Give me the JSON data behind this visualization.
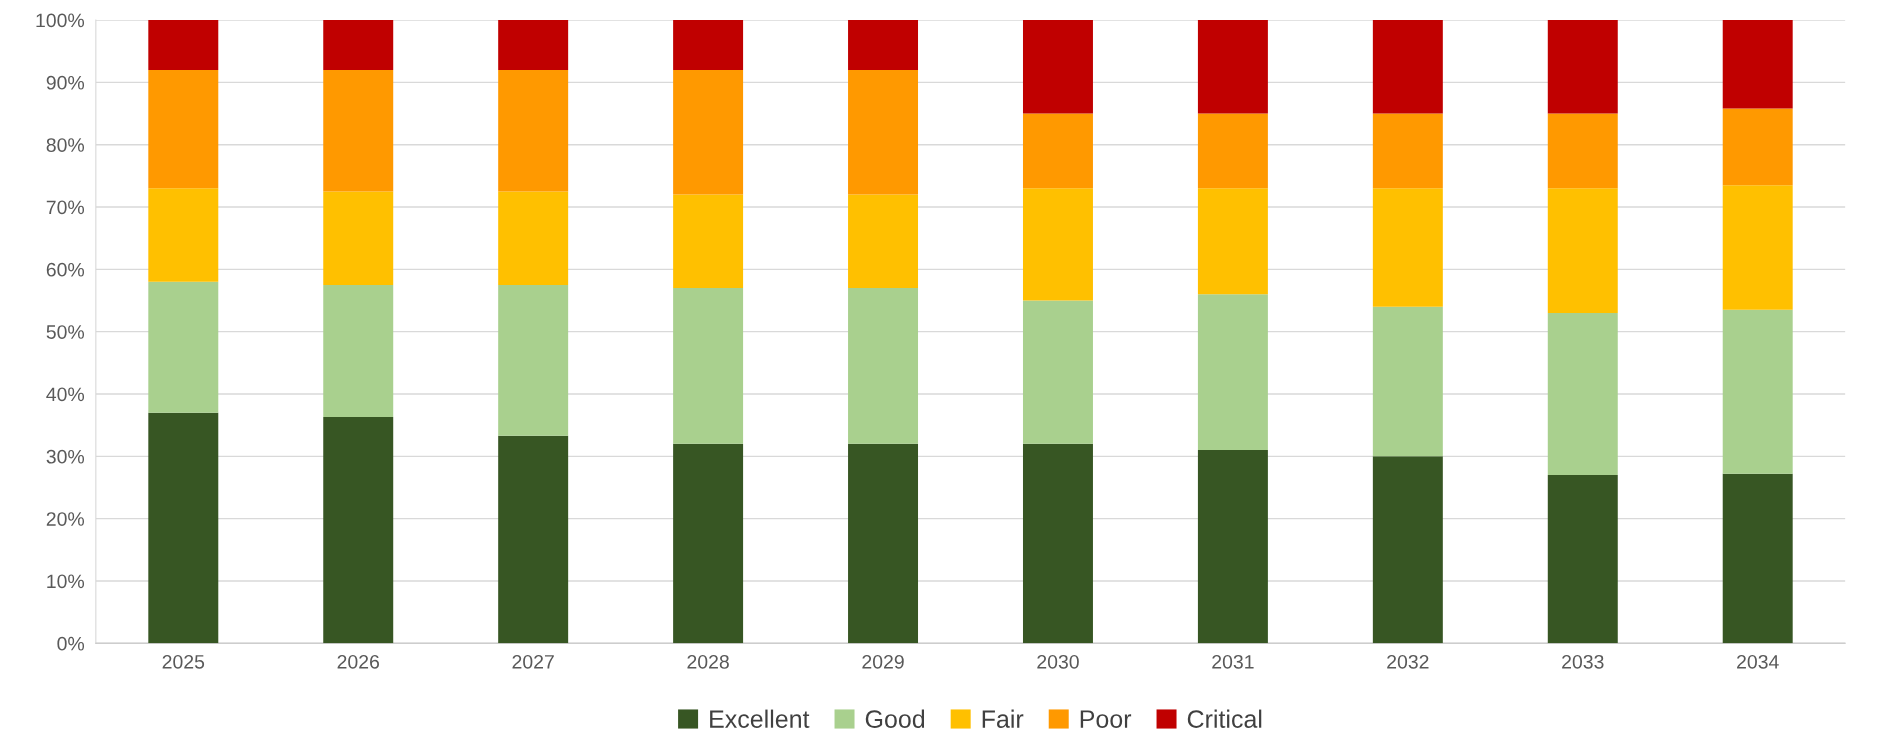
{
  "chart_data": {
    "type": "bar",
    "stacked": true,
    "categories": [
      "2025",
      "2026",
      "2027",
      "2028",
      "2029",
      "2030",
      "2031",
      "2032",
      "2033",
      "2034"
    ],
    "series": [
      {
        "name": "Excellent",
        "color": "#375623",
        "values": [
          37,
          36.3,
          33.3,
          32,
          32,
          32,
          31,
          30,
          27,
          27.2
        ]
      },
      {
        "name": "Good",
        "color": "#a9d08e",
        "values": [
          21,
          21.2,
          24.2,
          25,
          25,
          23,
          25,
          24,
          26,
          26.3
        ]
      },
      {
        "name": "Fair",
        "color": "#ffc000",
        "values": [
          15,
          15,
          15,
          15,
          15,
          18,
          17,
          19,
          20,
          20
        ]
      },
      {
        "name": "Poor",
        "color": "#ff9900",
        "values": [
          19,
          19.5,
          19.5,
          20,
          20,
          12,
          12,
          12,
          12,
          12.3
        ]
      },
      {
        "name": "Critical",
        "color": "#c00000",
        "values": [
          8,
          8,
          8,
          8,
          8,
          15,
          15,
          15,
          15,
          14.2
        ]
      }
    ],
    "ylim": [
      0,
      100
    ],
    "yticks": [
      {
        "value": 0,
        "label": "0%"
      },
      {
        "value": 10,
        "label": "10%"
      },
      {
        "value": 20,
        "label": "20%"
      },
      {
        "value": 30,
        "label": "30%"
      },
      {
        "value": 40,
        "label": "40%"
      },
      {
        "value": 50,
        "label": "50%"
      },
      {
        "value": 60,
        "label": "60%"
      },
      {
        "value": 70,
        "label": "70%"
      },
      {
        "value": 80,
        "label": "80%"
      },
      {
        "value": 90,
        "label": "90%"
      },
      {
        "value": 100,
        "label": "100%"
      }
    ],
    "grid": "y",
    "legend": "bottom"
  }
}
